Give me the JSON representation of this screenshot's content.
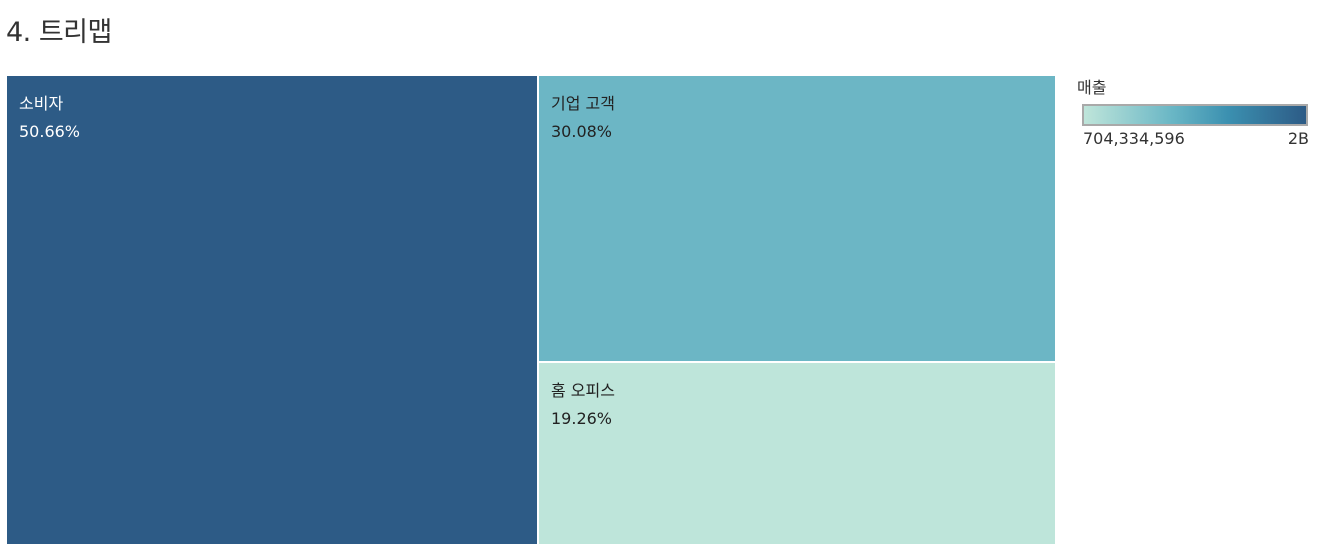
{
  "page": {
    "title": "4. 트리맵"
  },
  "legend": {
    "title": "매출",
    "min_label": "704,334,596",
    "max_label": "2B",
    "gradient_colors": [
      "#bfe5da",
      "#69b6c5",
      "#3b90b0",
      "#2d5b86"
    ]
  },
  "chart_data": {
    "type": "treemap",
    "title": "4. 트리맵",
    "color_measure": "매출",
    "items": [
      {
        "label": "소비자",
        "share_label": "50.66%",
        "share": 50.66,
        "color": "#2d5b86"
      },
      {
        "label": "기업 고객",
        "share_label": "30.08%",
        "share": 30.08,
        "color": "#6cb6c5"
      },
      {
        "label": "홈 오피스",
        "share_label": "19.26%",
        "share": 19.26,
        "color": "#bee5da"
      }
    ]
  }
}
